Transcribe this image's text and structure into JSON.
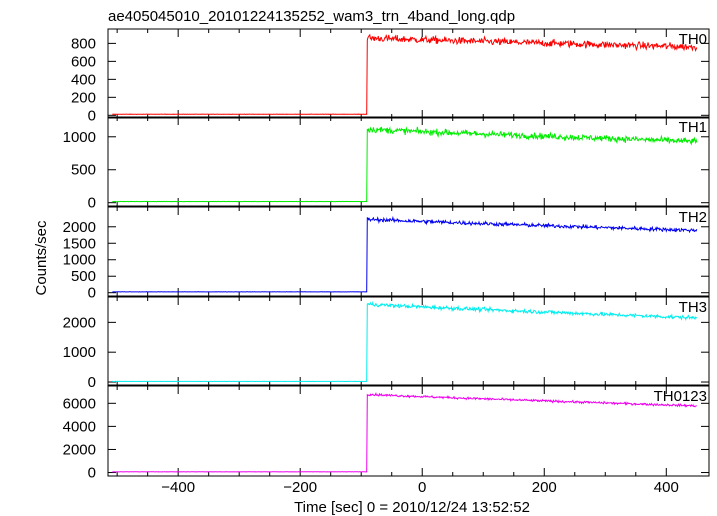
{
  "chart_data": {
    "type": "line",
    "title": "ae405045010_20101224135252_wam3_trn_4band_long.qdp",
    "xlabel": "Time [sec] 0 = 2010/12/24 13:52:52",
    "ylabel": "Counts/sec",
    "xlim": [
      -515,
      470
    ],
    "xticks": [
      -400,
      -200,
      0,
      200,
      400
    ],
    "grid": false,
    "legend": "none",
    "onset_time": -90,
    "panels": [
      {
        "name": "TH0",
        "color": "#ff0000",
        "ylim": [
          -30,
          960
        ],
        "yticks": [
          0,
          200,
          400,
          600,
          800
        ],
        "pre_level": 12,
        "peak_level": 860,
        "end_level": 760,
        "noise": 38
      },
      {
        "name": "TH1",
        "color": "#00ee00",
        "ylim": [
          -50,
          1300
        ],
        "yticks": [
          0,
          500,
          1000
        ],
        "pre_level": 18,
        "peak_level": 1115,
        "end_level": 930,
        "noise": 45
      },
      {
        "name": "TH2",
        "color": "#0000ee",
        "ylim": [
          -100,
          2600
        ],
        "yticks": [
          0,
          500,
          1000,
          1500,
          2000
        ],
        "pre_level": 25,
        "peak_level": 2230,
        "end_level": 1890,
        "noise": 55
      },
      {
        "name": "TH3",
        "color": "#00eeee",
        "ylim": [
          -100,
          2850
        ],
        "yticks": [
          0,
          1000,
          2000
        ],
        "pre_level": 20,
        "peak_level": 2610,
        "end_level": 2150,
        "noise": 60
      },
      {
        "name": "TH0123",
        "color": "#ee00ee",
        "ylim": [
          -300,
          7500
        ],
        "yticks": [
          0,
          2000,
          4000,
          6000
        ],
        "pre_level": 60,
        "peak_level": 6780,
        "end_level": 5780,
        "noise": 90
      }
    ]
  }
}
